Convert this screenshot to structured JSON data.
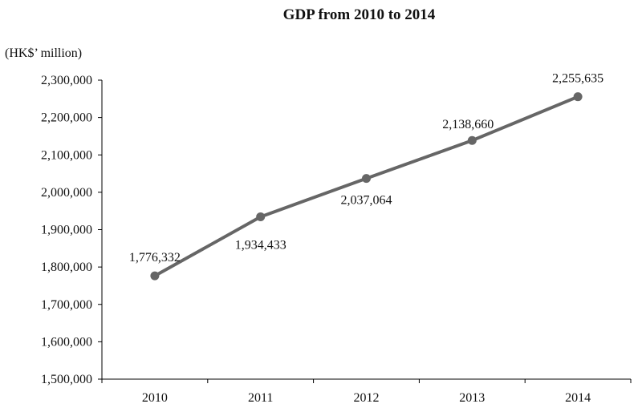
{
  "chart_data": {
    "type": "line",
    "title": "GDP from 2010 to 2014",
    "ylabel": "(HK$’ million)",
    "xlabel": "",
    "categories": [
      "2010",
      "2011",
      "2012",
      "2013",
      "2014"
    ],
    "series": [
      {
        "values": [
          1776332,
          1934433,
          2037064,
          2138660,
          2255635
        ]
      }
    ],
    "data_labels": [
      "1,776,332",
      "1,934,433",
      "2,037,064",
      "2,138,660",
      "2,255,635"
    ],
    "ylim": [
      1500000,
      2300000
    ],
    "yticks": [
      1500000,
      1600000,
      1700000,
      1800000,
      1900000,
      2000000,
      2100000,
      2200000,
      2300000
    ],
    "ytick_labels": [
      "1,500,000",
      "1,600,000",
      "1,700,000",
      "1,800,000",
      "1,900,000",
      "2,000,000",
      "2,100,000",
      "2,200,000",
      "2,300,000"
    ],
    "grid": false,
    "legend": "none",
    "colors": {
      "line": "#666666",
      "marker": "#666666",
      "axis": "#000000"
    }
  }
}
